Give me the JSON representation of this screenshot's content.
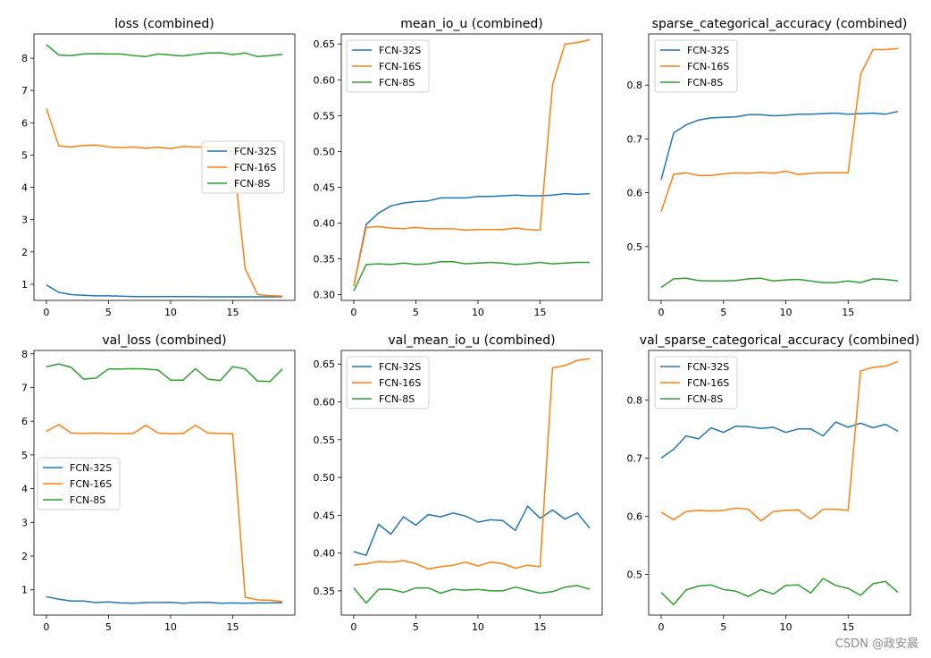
{
  "watermark": "CSDN @政安晨",
  "colors": {
    "FCN-32S": "#1f77b4",
    "FCN-16S": "#ff7f0e",
    "FCN-8S": "#2ca02c"
  },
  "chart_data": [
    {
      "type": "line",
      "title": "loss (combined)",
      "xlabel": "",
      "ylabel": "",
      "x": [
        0,
        1,
        2,
        3,
        4,
        5,
        6,
        7,
        8,
        9,
        10,
        11,
        12,
        13,
        14,
        15,
        16,
        17,
        18,
        19
      ],
      "xlim": [
        -1.0,
        20.0
      ],
      "ylim": [
        0.5,
        8.75
      ],
      "xticks": [
        0,
        5,
        10,
        15
      ],
      "yticks": [
        1,
        2,
        3,
        4,
        5,
        6,
        7,
        8
      ],
      "legend": "center-right",
      "series": [
        {
          "name": "FCN-32S",
          "values": [
            0.98,
            0.75,
            0.68,
            0.66,
            0.64,
            0.64,
            0.63,
            0.62,
            0.62,
            0.62,
            0.62,
            0.62,
            0.62,
            0.61,
            0.61,
            0.61,
            0.61,
            0.61,
            0.61,
            0.61
          ]
        },
        {
          "name": "FCN-16S",
          "values": [
            6.45,
            5.28,
            5.25,
            5.3,
            5.31,
            5.25,
            5.23,
            5.25,
            5.21,
            5.24,
            5.2,
            5.27,
            5.25,
            5.24,
            5.25,
            5.1,
            1.48,
            0.68,
            0.65,
            0.63
          ]
        },
        {
          "name": "FCN-8S",
          "values": [
            8.42,
            8.1,
            8.08,
            8.13,
            8.14,
            8.13,
            8.13,
            8.08,
            8.05,
            8.13,
            8.1,
            8.07,
            8.12,
            8.16,
            8.17,
            8.11,
            8.16,
            8.05,
            8.08,
            8.12
          ]
        }
      ]
    },
    {
      "type": "line",
      "title": "mean_io_u (combined)",
      "xlabel": "",
      "ylabel": "",
      "x": [
        0,
        1,
        2,
        3,
        4,
        5,
        6,
        7,
        8,
        9,
        10,
        11,
        12,
        13,
        14,
        15,
        16,
        17,
        18,
        19
      ],
      "xlim": [
        -1.0,
        20.0
      ],
      "ylim": [
        0.292,
        0.664
      ],
      "xticks": [
        0,
        5,
        10,
        15
      ],
      "yticks": [
        0.3,
        0.35,
        0.4,
        0.45,
        0.5,
        0.55,
        0.6,
        0.65
      ],
      "ytick_labels": [
        "0.30",
        "0.35",
        "0.40",
        "0.45",
        "0.50",
        "0.55",
        "0.60",
        "0.65"
      ],
      "legend": "top-left",
      "series": [
        {
          "name": "FCN-32S",
          "values": [
            0.312,
            0.398,
            0.414,
            0.424,
            0.428,
            0.43,
            0.431,
            0.435,
            0.435,
            0.435,
            0.437,
            0.437,
            0.438,
            0.439,
            0.438,
            0.438,
            0.439,
            0.441,
            0.44,
            0.441
          ]
        },
        {
          "name": "FCN-16S",
          "values": [
            0.312,
            0.394,
            0.395,
            0.393,
            0.392,
            0.394,
            0.392,
            0.392,
            0.392,
            0.39,
            0.391,
            0.391,
            0.391,
            0.393,
            0.391,
            0.39,
            0.593,
            0.65,
            0.652,
            0.656
          ]
        },
        {
          "name": "FCN-8S",
          "values": [
            0.305,
            0.342,
            0.343,
            0.342,
            0.344,
            0.342,
            0.343,
            0.346,
            0.346,
            0.343,
            0.344,
            0.345,
            0.344,
            0.342,
            0.343,
            0.345,
            0.343,
            0.344,
            0.345,
            0.345
          ]
        }
      ]
    },
    {
      "type": "line",
      "title": "sparse_categorical_accuracy (combined)",
      "xlabel": "",
      "ylabel": "",
      "x": [
        0,
        1,
        2,
        3,
        4,
        5,
        6,
        7,
        8,
        9,
        10,
        11,
        12,
        13,
        14,
        15,
        16,
        17,
        18,
        19
      ],
      "xlim": [
        -1.0,
        20.0
      ],
      "ylim": [
        0.4,
        0.895
      ],
      "xticks": [
        0,
        5,
        10,
        15
      ],
      "yticks": [
        0.5,
        0.6,
        0.7,
        0.8
      ],
      "ytick_labels": [
        "0.5",
        "0.6",
        "0.7",
        "0.8"
      ],
      "legend": "top-left",
      "series": [
        {
          "name": "FCN-32S",
          "values": [
            0.624,
            0.711,
            0.726,
            0.735,
            0.739,
            0.74,
            0.741,
            0.745,
            0.745,
            0.743,
            0.744,
            0.746,
            0.746,
            0.747,
            0.748,
            0.746,
            0.747,
            0.748,
            0.746,
            0.751
          ]
        },
        {
          "name": "FCN-16S",
          "values": [
            0.565,
            0.634,
            0.637,
            0.632,
            0.632,
            0.635,
            0.637,
            0.636,
            0.638,
            0.636,
            0.64,
            0.634,
            0.636,
            0.637,
            0.637,
            0.637,
            0.82,
            0.866,
            0.866,
            0.868
          ]
        },
        {
          "name": "FCN-8S",
          "values": [
            0.424,
            0.44,
            0.441,
            0.437,
            0.436,
            0.436,
            0.437,
            0.44,
            0.441,
            0.436,
            0.438,
            0.439,
            0.436,
            0.433,
            0.433,
            0.436,
            0.433,
            0.44,
            0.439,
            0.436
          ]
        }
      ]
    },
    {
      "type": "line",
      "title": "val_loss (combined)",
      "xlabel": "",
      "ylabel": "",
      "x": [
        0,
        1,
        2,
        3,
        4,
        5,
        6,
        7,
        8,
        9,
        10,
        11,
        12,
        13,
        14,
        15,
        16,
        17,
        18,
        19
      ],
      "xlim": [
        -1.0,
        20.0
      ],
      "ylim": [
        0.25,
        8.1
      ],
      "xticks": [
        0,
        5,
        10,
        15
      ],
      "yticks": [
        1,
        2,
        3,
        4,
        5,
        6,
        7,
        8
      ],
      "legend": "center-left",
      "series": [
        {
          "name": "FCN-32S",
          "values": [
            0.8,
            0.72,
            0.67,
            0.67,
            0.62,
            0.64,
            0.61,
            0.6,
            0.62,
            0.62,
            0.63,
            0.6,
            0.62,
            0.63,
            0.6,
            0.61,
            0.6,
            0.61,
            0.61,
            0.62
          ]
        },
        {
          "name": "FCN-16S",
          "values": [
            5.7,
            5.9,
            5.65,
            5.64,
            5.65,
            5.64,
            5.63,
            5.64,
            5.88,
            5.65,
            5.63,
            5.64,
            5.88,
            5.65,
            5.64,
            5.63,
            0.78,
            0.7,
            0.69,
            0.65
          ]
        },
        {
          "name": "FCN-8S",
          "values": [
            7.62,
            7.7,
            7.6,
            7.25,
            7.28,
            7.55,
            7.55,
            7.56,
            7.55,
            7.52,
            7.22,
            7.22,
            7.56,
            7.25,
            7.21,
            7.62,
            7.55,
            7.19,
            7.18,
            7.55
          ]
        }
      ]
    },
    {
      "type": "line",
      "title": "val_mean_io_u (combined)",
      "xlabel": "",
      "ylabel": "",
      "x": [
        0,
        1,
        2,
        3,
        4,
        5,
        6,
        7,
        8,
        9,
        10,
        11,
        12,
        13,
        14,
        15,
        16,
        17,
        18,
        19
      ],
      "xlim": [
        -1.0,
        20.0
      ],
      "ylim": [
        0.318,
        0.668
      ],
      "xticks": [
        0,
        5,
        10,
        15
      ],
      "yticks": [
        0.35,
        0.4,
        0.45,
        0.5,
        0.55,
        0.6,
        0.65
      ],
      "ytick_labels": [
        "0.35",
        "0.40",
        "0.45",
        "0.50",
        "0.55",
        "0.60",
        "0.65"
      ],
      "legend": "top-left",
      "series": [
        {
          "name": "FCN-32S",
          "values": [
            0.402,
            0.397,
            0.438,
            0.425,
            0.448,
            0.437,
            0.451,
            0.448,
            0.453,
            0.449,
            0.441,
            0.444,
            0.443,
            0.43,
            0.462,
            0.446,
            0.457,
            0.445,
            0.453,
            0.433
          ]
        },
        {
          "name": "FCN-16S",
          "values": [
            0.384,
            0.386,
            0.389,
            0.388,
            0.39,
            0.386,
            0.379,
            0.382,
            0.384,
            0.388,
            0.383,
            0.388,
            0.386,
            0.38,
            0.384,
            0.382,
            0.645,
            0.648,
            0.655,
            0.657
          ]
        },
        {
          "name": "FCN-8S",
          "values": [
            0.354,
            0.334,
            0.352,
            0.352,
            0.348,
            0.354,
            0.354,
            0.347,
            0.352,
            0.351,
            0.352,
            0.35,
            0.35,
            0.355,
            0.351,
            0.347,
            0.349,
            0.355,
            0.357,
            0.352
          ]
        }
      ]
    },
    {
      "type": "line",
      "title": "val_sparse_categorical_accuracy (combined)",
      "xlabel": "",
      "ylabel": "",
      "x": [
        0,
        1,
        2,
        3,
        4,
        5,
        6,
        7,
        8,
        9,
        10,
        11,
        12,
        13,
        14,
        15,
        16,
        17,
        18,
        19
      ],
      "xlim": [
        -1.0,
        20.0
      ],
      "ylim": [
        0.43,
        0.885
      ],
      "xticks": [
        0,
        5,
        10,
        15
      ],
      "yticks": [
        0.5,
        0.6,
        0.7,
        0.8
      ],
      "ytick_labels": [
        "0.5",
        "0.6",
        "0.7",
        "0.8"
      ],
      "legend": "top-left",
      "series": [
        {
          "name": "FCN-32S",
          "values": [
            0.7,
            0.715,
            0.738,
            0.733,
            0.752,
            0.744,
            0.755,
            0.754,
            0.751,
            0.753,
            0.744,
            0.75,
            0.75,
            0.738,
            0.762,
            0.753,
            0.76,
            0.752,
            0.758,
            0.746
          ]
        },
        {
          "name": "FCN-16S",
          "values": [
            0.607,
            0.594,
            0.608,
            0.61,
            0.609,
            0.61,
            0.614,
            0.612,
            0.592,
            0.608,
            0.61,
            0.611,
            0.595,
            0.612,
            0.612,
            0.61,
            0.85,
            0.856,
            0.858,
            0.866
          ]
        },
        {
          "name": "FCN-8S",
          "values": [
            0.469,
            0.448,
            0.473,
            0.48,
            0.482,
            0.474,
            0.471,
            0.462,
            0.474,
            0.466,
            0.481,
            0.482,
            0.468,
            0.493,
            0.481,
            0.476,
            0.464,
            0.484,
            0.488,
            0.469
          ]
        }
      ]
    }
  ]
}
